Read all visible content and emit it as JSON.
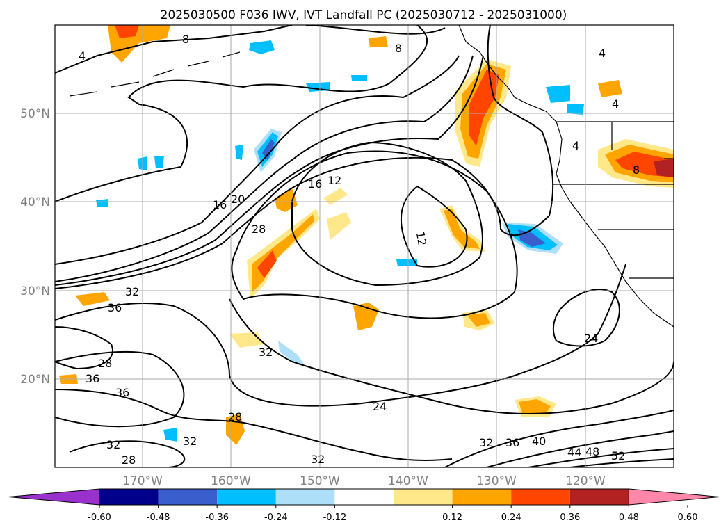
{
  "title": "2025030500 F036 IWV, IVT Landfall PC (2025030712 - 2025031000)",
  "lat_ticks": [
    "50°N",
    "40°N",
    "30°N",
    "20°N"
  ],
  "lon_ticks": [
    "170°W",
    "160°W",
    "150°W",
    "140°W",
    "130°W",
    "120°W"
  ],
  "colorbar": {
    "ticks": [
      "-0.60",
      "-0.48",
      "-0.36",
      "-0.24",
      "-0.12",
      "0.12",
      "0.24",
      "0.36",
      "0.48",
      "0.60"
    ],
    "colors": [
      "#9932CC",
      "#00008B",
      "#3A5FCD",
      "#00BFFF",
      "#ADDFF8",
      "#FFFFFF",
      "#FFE88A",
      "#FFA500",
      "#FF4500",
      "#B22222",
      "#FF88AA"
    ]
  },
  "contour_labels": [
    "4",
    "8",
    "8",
    "4",
    "4",
    "4",
    "8",
    "12",
    "16",
    "20",
    "16",
    "12",
    "28",
    "32",
    "36",
    "28",
    "36",
    "36",
    "32",
    "32",
    "32",
    "24",
    "24",
    "32",
    "36",
    "40",
    "44",
    "48",
    "52",
    "32",
    "28",
    "28"
  ],
  "fill_colors": {
    "light_orange": "#FFE88A",
    "orange": "#FFA500",
    "red_orange": "#FF4500",
    "dark_red": "#B22222",
    "light_blue": "#ADDFF8",
    "blue": "#00BFFF",
    "mid_blue": "#3A5FCD"
  }
}
